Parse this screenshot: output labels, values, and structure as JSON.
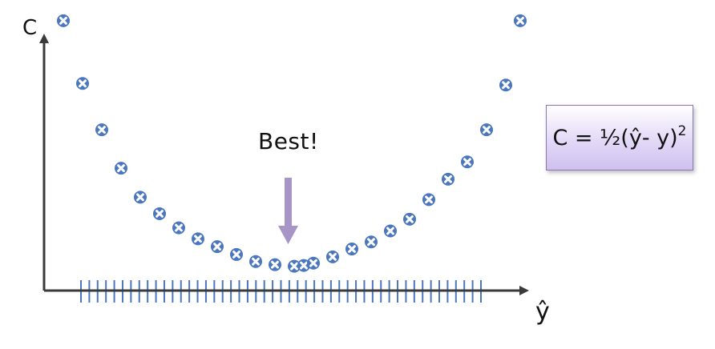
{
  "annotation": "Best!",
  "formula": {
    "main": "C = ½(ŷ- y)",
    "superscript": "2"
  },
  "axes": {
    "y_label": "C",
    "x_label": "ŷ"
  },
  "colors": {
    "marker": "#4a77c0",
    "axis": "#3a3a3a",
    "arrow": "#a795c8",
    "box_border": "#8a78b5",
    "box_fill_top": "#ffffff",
    "box_fill_bottom": "#cfc0ef"
  },
  "chart_data": {
    "type": "scatter",
    "title": "",
    "xlabel": "ŷ",
    "ylabel": "C",
    "grid": false,
    "xlim": [
      0,
      50
    ],
    "ylim": [
      0,
      35
    ],
    "x_tick_count": 49,
    "x": [
      2,
      4,
      6,
      8,
      10,
      12,
      14,
      16,
      18,
      20,
      22,
      24,
      26,
      27,
      28,
      30,
      32,
      34,
      36,
      38,
      40,
      42,
      44,
      46,
      48,
      49.5
    ],
    "y": [
      34.4,
      26.4,
      20.5,
      15.6,
      11.9,
      9.8,
      8.0,
      6.6,
      5.6,
      4.6,
      3.7,
      3.3,
      3.1,
      3.2,
      3.5,
      4.3,
      5.3,
      6.2,
      7.6,
      9.1,
      11.6,
      14.2,
      16.4,
      20.5,
      26.2,
      34.4
    ]
  }
}
